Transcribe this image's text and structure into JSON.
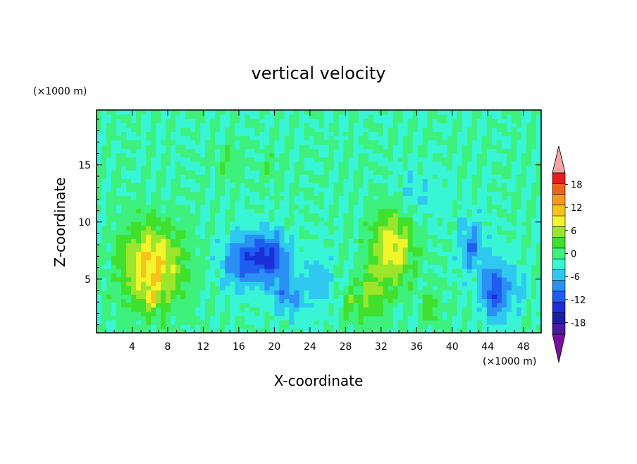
{
  "chart_data": {
    "type": "heatmap",
    "title": "vertical velocity",
    "xlabel": "X-coordinate",
    "ylabel": "Z-coordinate",
    "x_unit": "(×1000 m)",
    "y_unit": "(×1000 m)",
    "xlim": [
      0,
      50
    ],
    "ylim": [
      0.3,
      19.8
    ],
    "x_ticks": [
      4,
      8,
      12,
      16,
      20,
      24,
      28,
      32,
      36,
      40,
      44,
      48
    ],
    "y_ticks": [
      5,
      10,
      15
    ],
    "colorbar": {
      "labels": [
        18,
        12,
        6,
        0,
        -6,
        -12,
        -18
      ],
      "levels": [
        -21,
        -18,
        -15,
        -12,
        -9,
        -6,
        -3,
        0,
        3,
        6,
        9,
        12,
        15,
        18,
        21
      ],
      "colors": [
        "#7b0fa3",
        "#4a1aa0",
        "#1c1ea0",
        "#1a2fd6",
        "#1f5cf0",
        "#2a90f5",
        "#2ec8f0",
        "#38f5d6",
        "#3ef07c",
        "#40e02c",
        "#9be52a",
        "#f2f52a",
        "#f7c31a",
        "#f59a1a",
        "#f0641a",
        "#e61e1e",
        "#f5a3a3"
      ]
    },
    "features": [
      {
        "kind": "updraft",
        "x": 6,
        "z": 6.5,
        "peak": 15
      },
      {
        "kind": "updraft",
        "x": 33,
        "z": 8,
        "peak": 12
      },
      {
        "kind": "downdraft",
        "x": 19,
        "z": 7,
        "peak": -13
      },
      {
        "kind": "downdraft",
        "x": 44.5,
        "z": 4,
        "peak": -15
      }
    ]
  }
}
